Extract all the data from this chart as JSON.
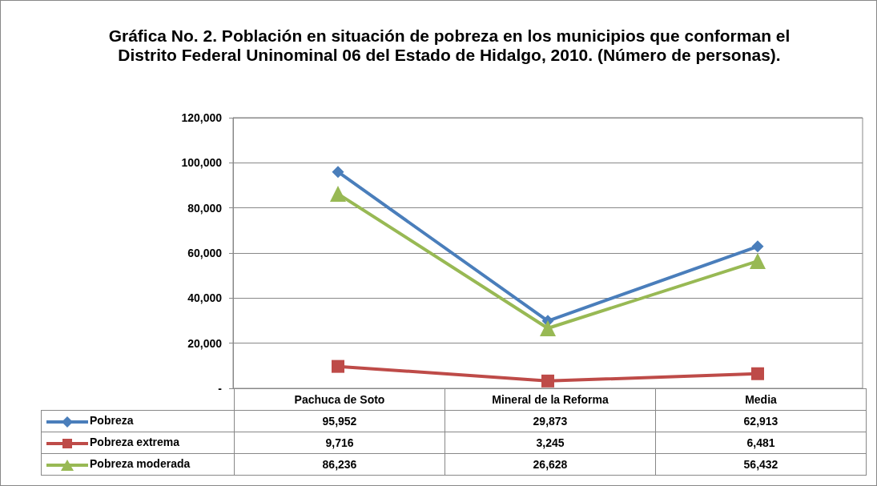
{
  "chart_data": {
    "type": "line",
    "title": "Gráfica No. 2. Población en situación de pobreza en los municipios que conforman el Distrito Federal Uninominal 06 del Estado de Hidalgo, 2010. (Número de personas).",
    "categories": [
      "Pachuca de Soto",
      "Mineral de la Reforma",
      "Media"
    ],
    "series": [
      {
        "name": "Pobreza",
        "color": "#4a7ebb",
        "marker": "diamond",
        "values": [
          95952,
          29873,
          62913
        ],
        "value_labels": [
          "95,952",
          "29,873",
          "62,913"
        ]
      },
      {
        "name": "Pobreza extrema",
        "color": "#be4b48",
        "marker": "square",
        "values": [
          9716,
          3245,
          6481
        ],
        "value_labels": [
          "9,716",
          "3,245",
          "6,481"
        ]
      },
      {
        "name": "Pobreza moderada",
        "color": "#98b954",
        "marker": "triangle",
        "values": [
          86236,
          26628,
          56432
        ],
        "value_labels": [
          "86,236",
          "26,628",
          "56,432"
        ]
      }
    ],
    "ylim": [
      0,
      120000
    ],
    "yticks": [
      {
        "value": 0,
        "label": "-"
      },
      {
        "value": 20000,
        "label": "20,000"
      },
      {
        "value": 40000,
        "label": "40,000"
      },
      {
        "value": 60000,
        "label": "60,000"
      },
      {
        "value": 80000,
        "label": "80,000"
      },
      {
        "value": 100000,
        "label": "100,000"
      },
      {
        "value": 120000,
        "label": "120,000"
      }
    ],
    "grid": "y",
    "legend": "bottom",
    "line_style": "solid"
  }
}
